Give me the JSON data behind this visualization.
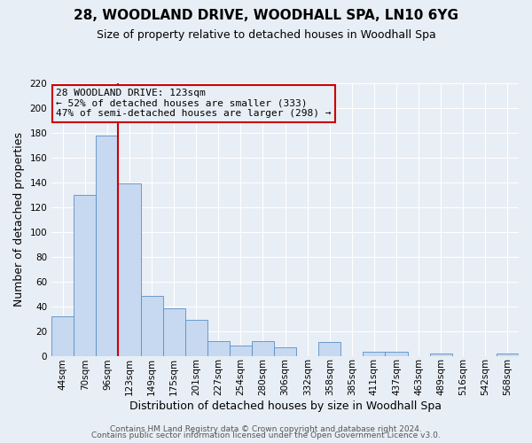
{
  "title": "28, WOODLAND DRIVE, WOODHALL SPA, LN10 6YG",
  "subtitle": "Size of property relative to detached houses in Woodhall Spa",
  "xlabel": "Distribution of detached houses by size in Woodhall Spa",
  "ylabel": "Number of detached properties",
  "bin_labels": [
    "44sqm",
    "70sqm",
    "96sqm",
    "123sqm",
    "149sqm",
    "175sqm",
    "201sqm",
    "227sqm",
    "254sqm",
    "280sqm",
    "306sqm",
    "332sqm",
    "358sqm",
    "385sqm",
    "411sqm",
    "437sqm",
    "463sqm",
    "489sqm",
    "516sqm",
    "542sqm",
    "568sqm"
  ],
  "bar_heights": [
    32,
    130,
    178,
    139,
    48,
    38,
    29,
    12,
    8,
    12,
    7,
    0,
    11,
    0,
    3,
    3,
    0,
    2,
    0,
    0,
    2
  ],
  "bar_color": "#c6d9f0",
  "bar_edge_color": "#5a8fc3",
  "vline_color": "#cc0000",
  "annotation_title": "28 WOODLAND DRIVE: 123sqm",
  "annotation_line1": "← 52% of detached houses are smaller (333)",
  "annotation_line2": "47% of semi-detached houses are larger (298) →",
  "annotation_box_edge": "#cc0000",
  "ylim": [
    0,
    220
  ],
  "yticks": [
    0,
    20,
    40,
    60,
    80,
    100,
    120,
    140,
    160,
    180,
    200,
    220
  ],
  "footer1": "Contains HM Land Registry data © Crown copyright and database right 2024.",
  "footer2": "Contains public sector information licensed under the Open Government Licence v3.0.",
  "background_color": "#e8eef5",
  "grid_color": "#ffffff",
  "title_fontsize": 11,
  "subtitle_fontsize": 9,
  "label_fontsize": 9,
  "tick_fontsize": 7.5,
  "annotation_fontsize": 8,
  "footer_fontsize": 6.5
}
